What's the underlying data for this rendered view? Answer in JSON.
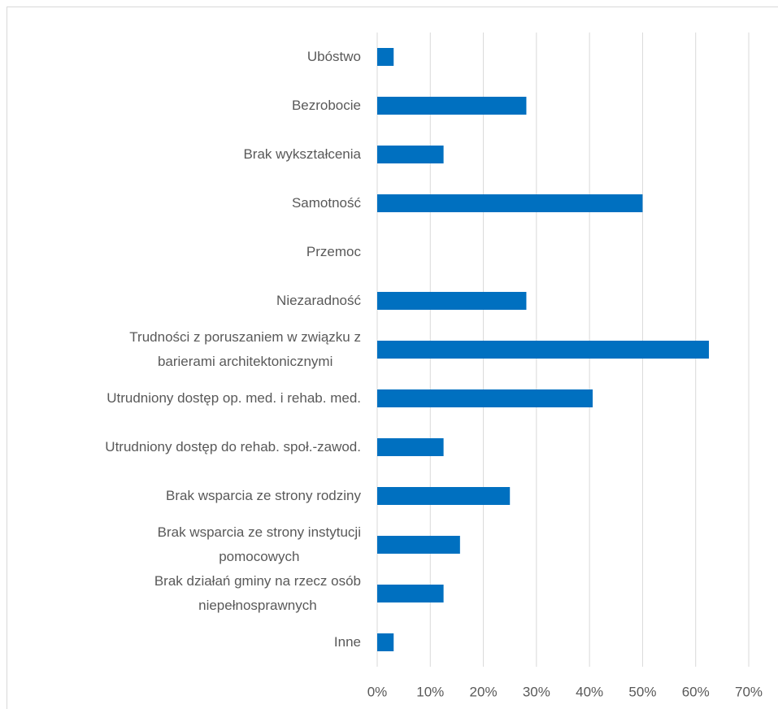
{
  "chart_data": {
    "type": "bar",
    "orientation": "horizontal",
    "categories": [
      "Ubóstwo",
      "Bezrobocie",
      "Brak wykształcenia",
      "Samotność",
      "Przemoc",
      "Niezaradność",
      "Trudności z poruszaniem w związku z\nbarierami architektonicznymi",
      "Utrudniony dostęp op. med. i rehab. med.",
      "Utrudniony dostęp do rehab. społ.-zawod.",
      "Brak wsparcia ze strony rodziny",
      "Brak wsparcia ze strony instytucji\npomocowych",
      "Brak działań gminy na rzecz osób\nniepełnosprawnych",
      "Inne"
    ],
    "values": [
      3.1,
      28.1,
      12.5,
      50,
      0,
      28.1,
      62.5,
      40.6,
      12.5,
      25,
      15.6,
      12.5,
      3.1
    ],
    "color": "#0070c0",
    "xlim": [
      0,
      70
    ],
    "xticks": [
      {
        "value": 0,
        "label": "0%"
      },
      {
        "value": 10,
        "label": "10%"
      },
      {
        "value": 20,
        "label": "20%"
      },
      {
        "value": 30,
        "label": "30%"
      },
      {
        "value": 40,
        "label": "40%"
      },
      {
        "value": 50,
        "label": "50%"
      },
      {
        "value": 60,
        "label": "60%"
      },
      {
        "value": 70,
        "label": "70%"
      }
    ],
    "grid": true
  }
}
